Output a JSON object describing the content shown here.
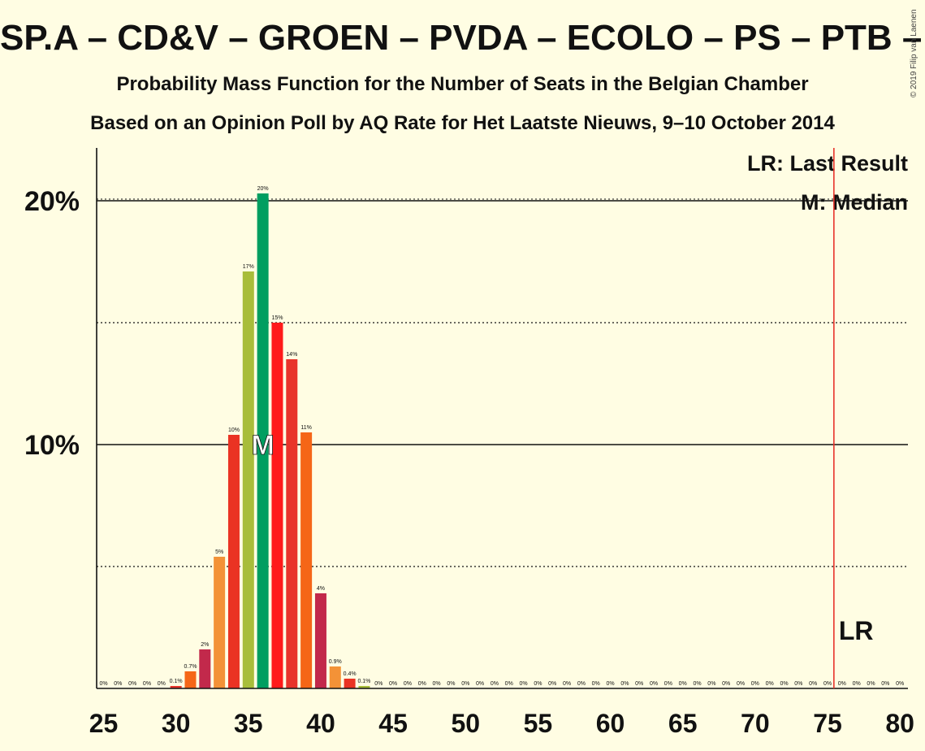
{
  "title": "SP.A – CD&V – GROEN – PVDA – ECOLO – PS – PTB – CDH",
  "subtitle": "Probability Mass Function for the Number of Seats in the Belgian Chamber",
  "caption": "Based on an Opinion Poll by AQ Rate for Het Laatste Nieuws, 9–10 October 2014",
  "copyright": "© 2019 Filip van Laenen",
  "legend": {
    "last_result": "LR: Last Result",
    "median": "M: Median"
  },
  "markers": {
    "median_label": "M",
    "last_result_label": "LR"
  },
  "chart_data": {
    "type": "bar",
    "x": [
      25,
      26,
      27,
      28,
      29,
      30,
      31,
      32,
      33,
      34,
      35,
      36,
      37,
      38,
      39,
      40,
      41,
      42,
      43,
      44,
      45,
      46,
      47,
      48,
      49,
      50,
      51,
      52,
      53,
      54,
      55,
      56,
      57,
      58,
      59,
      60,
      61,
      62,
      63,
      64,
      65,
      66,
      67,
      68,
      69,
      70,
      71,
      72,
      73,
      74,
      75,
      76,
      77,
      78,
      79,
      80
    ],
    "values": [
      0,
      0,
      0,
      0,
      0,
      0.1,
      0.7,
      1.6,
      5.4,
      10.4,
      17.1,
      20.3,
      15.0,
      13.5,
      10.5,
      3.9,
      0.9,
      0.4,
      0.1,
      0,
      0,
      0,
      0,
      0,
      0,
      0,
      0,
      0,
      0,
      0,
      0,
      0,
      0,
      0,
      0,
      0,
      0,
      0,
      0,
      0,
      0,
      0,
      0,
      0,
      0,
      0,
      0,
      0,
      0,
      0,
      0,
      0,
      0,
      0,
      0,
      0
    ],
    "labels": [
      "0%",
      "0%",
      "0%",
      "0%",
      "0%",
      "0.1%",
      "0.7%",
      "2%",
      "5%",
      "10%",
      "17%",
      "20%",
      "15%",
      "14%",
      "11%",
      "4%",
      "0.9%",
      "0.4%",
      "0.1%",
      "0%",
      "0%",
      "0%",
      "0%",
      "0%",
      "0%",
      "0%",
      "0%",
      "0%",
      "0%",
      "0%",
      "0%",
      "0%",
      "0%",
      "0%",
      "0%",
      "0%",
      "0%",
      "0%",
      "0%",
      "0%",
      "0%",
      "0%",
      "0%",
      "0%",
      "0%",
      "0%",
      "0%",
      "0%",
      "0%",
      "0%",
      "0%",
      "0%",
      "0%",
      "0%",
      "0%",
      "0%"
    ],
    "colors": [
      "#F39237",
      "#EA3323",
      "#A8BD3A",
      "#E8342B",
      "#FF1A1A",
      "#E8342B",
      "#F56617",
      "#C2294B"
    ],
    "median_color": "#009E60",
    "median": 36,
    "last_result": 76,
    "last_result_color": "#E8342B",
    "xlim": [
      25,
      80
    ],
    "ylim": [
      0,
      22
    ],
    "xticks": [
      25,
      30,
      35,
      40,
      45,
      50,
      55,
      60,
      65,
      70,
      75,
      80
    ],
    "yticks": [
      {
        "value": 10,
        "label": "10%"
      },
      {
        "value": 20,
        "label": "20%"
      }
    ],
    "minor_gridlines": [
      5,
      15
    ],
    "grid": true
  }
}
